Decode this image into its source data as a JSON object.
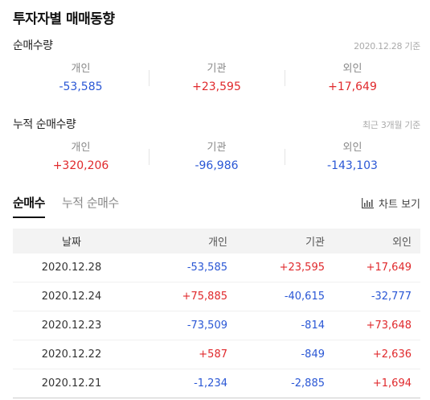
{
  "page_title": "투자자별 매매동향",
  "net_buy": {
    "title": "순매수량",
    "date": "2020.12.28 기준",
    "stats": [
      {
        "label": "개인",
        "value": "-53,585"
      },
      {
        "label": "기관",
        "value": "+23,595"
      },
      {
        "label": "외인",
        "value": "+17,649"
      }
    ]
  },
  "cumulative": {
    "title": "누적 순매수량",
    "date": "최근 3개월 기준",
    "stats": [
      {
        "label": "개인",
        "value": "+320,206"
      },
      {
        "label": "기관",
        "value": "-96,986"
      },
      {
        "label": "외인",
        "value": "-143,103"
      }
    ]
  },
  "tabs": [
    {
      "label": "순매수",
      "active": true
    },
    {
      "label": "누적 순매수",
      "active": false
    }
  ],
  "chart_button": {
    "label": "차트 보기",
    "icon": "bar-chart-icon"
  },
  "table": {
    "headers": [
      "날짜",
      "개인",
      "기관",
      "외인"
    ],
    "rows": [
      [
        "2020.12.28",
        "-53,585",
        "+23,595",
        "+17,649"
      ],
      [
        "2020.12.24",
        "+75,885",
        "-40,615",
        "-32,777"
      ],
      [
        "2020.12.23",
        "-73,509",
        "-814",
        "+73,648"
      ],
      [
        "2020.12.22",
        "+587",
        "-849",
        "+2,636"
      ],
      [
        "2020.12.21",
        "-1,234",
        "-2,885",
        "+1,694"
      ]
    ]
  },
  "colors": {
    "positive": "#e0292c",
    "negative": "#2a57d5"
  }
}
